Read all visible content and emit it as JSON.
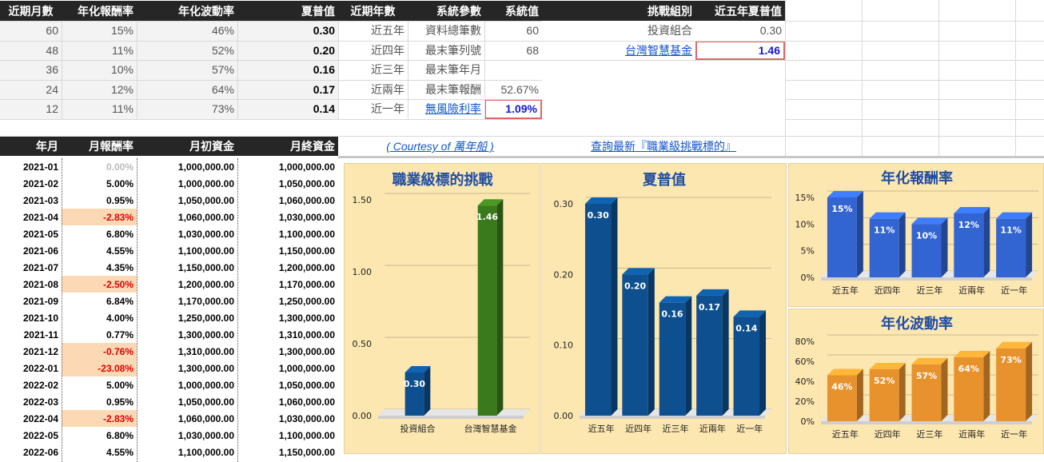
{
  "top_table": {
    "headers": [
      "近期月數",
      "年化報酬率",
      "年化波動率",
      "夏普值",
      "近期年數",
      "系統參數",
      "系統值"
    ],
    "rows": [
      [
        "60",
        "15%",
        "46%",
        "0.30",
        "近五年",
        "資料總筆數",
        "60"
      ],
      [
        "48",
        "11%",
        "52%",
        "0.20",
        "近四年",
        "最末筆列號",
        "68"
      ],
      [
        "36",
        "10%",
        "57%",
        "0.16",
        "近三年",
        "最末筆年月",
        ""
      ],
      [
        "24",
        "12%",
        "64%",
        "0.17",
        "近兩年",
        "最末筆報酬",
        "52.67%"
      ],
      [
        "12",
        "11%",
        "73%",
        "0.14",
        "近一年",
        "無風險利率",
        "1.09%"
      ]
    ]
  },
  "challenge_table": {
    "headers": [
      "挑戰組別",
      "近五年夏普值"
    ],
    "rows": [
      [
        "投資組合",
        "0.30"
      ],
      [
        "台灣智慧基金",
        "1.46"
      ]
    ]
  },
  "links": {
    "courtesy": "( Courtesy of 萬年船 )",
    "query": "查詢最新『職業級挑戰標的』"
  },
  "monthly_table": {
    "headers": [
      "年月",
      "月報酬率",
      "月初資金",
      "月終資金"
    ],
    "rows": [
      [
        "2021-01",
        "0.00%",
        "1,000,000.00",
        "1,000,000.00"
      ],
      [
        "2021-02",
        "5.00%",
        "1,000,000.00",
        "1,050,000.00"
      ],
      [
        "2021-03",
        "0.95%",
        "1,050,000.00",
        "1,060,000.00"
      ],
      [
        "2021-04",
        "-2.83%",
        "1,060,000.00",
        "1,030,000.00"
      ],
      [
        "2021-05",
        "6.80%",
        "1,030,000.00",
        "1,100,000.00"
      ],
      [
        "2021-06",
        "4.55%",
        "1,100,000.00",
        "1,150,000.00"
      ],
      [
        "2021-07",
        "4.35%",
        "1,150,000.00",
        "1,200,000.00"
      ],
      [
        "2021-08",
        "-2.50%",
        "1,200,000.00",
        "1,170,000.00"
      ],
      [
        "2021-09",
        "6.84%",
        "1,170,000.00",
        "1,250,000.00"
      ],
      [
        "2021-10",
        "4.00%",
        "1,250,000.00",
        "1,300,000.00"
      ],
      [
        "2021-11",
        "0.77%",
        "1,300,000.00",
        "1,310,000.00"
      ],
      [
        "2021-12",
        "-0.76%",
        "1,310,000.00",
        "1,300,000.00"
      ],
      [
        "2022-01",
        "-23.08%",
        "1,300,000.00",
        "1,000,000.00"
      ],
      [
        "2022-02",
        "5.00%",
        "1,000,000.00",
        "1,050,000.00"
      ],
      [
        "2022-03",
        "0.95%",
        "1,050,000.00",
        "1,060,000.00"
      ],
      [
        "2022-04",
        "-2.83%",
        "1,060,000.00",
        "1,030,000.00"
      ],
      [
        "2022-05",
        "6.80%",
        "1,030,000.00",
        "1,100,000.00"
      ],
      [
        "2022-06",
        "4.55%",
        "1,100,000.00",
        "1,150,000.00"
      ]
    ]
  },
  "colors": {
    "chart_bg": "#fde7b0",
    "navy": "#0d4f8f",
    "green": "#3a7a1c",
    "blue": "#3264d2",
    "orange": "#e8922e",
    "negative_bg": "#fcd9b4",
    "negative_text": "#e00000",
    "link": "#1155cc",
    "title": "#1f4ea3"
  },
  "chart_data": [
    {
      "type": "bar",
      "title": "職業級標的挑戰",
      "categories": [
        "投資組合",
        "台灣智慧基金"
      ],
      "values": [
        0.3,
        1.46
      ],
      "value_labels": [
        "0.30",
        "1.46"
      ],
      "colors": [
        "#0d4f8f",
        "#3a7a1c"
      ],
      "ylim": [
        0,
        1.5
      ],
      "ticks": [
        "0.00",
        "0.50",
        "1.00",
        "1.50"
      ],
      "tick_values": [
        0,
        0.5,
        1.0,
        1.5
      ]
    },
    {
      "type": "bar",
      "title": "夏普值",
      "categories": [
        "近五年",
        "近四年",
        "近三年",
        "近兩年",
        "近一年"
      ],
      "values": [
        0.3,
        0.2,
        0.16,
        0.17,
        0.14
      ],
      "value_labels": [
        "0.30",
        "0.20",
        "0.16",
        "0.17",
        "0.14"
      ],
      "colors": [
        "#0d4f8f",
        "#0d4f8f",
        "#0d4f8f",
        "#0d4f8f",
        "#0d4f8f"
      ],
      "ylim": [
        0,
        0.3
      ],
      "ticks": [
        "0.00",
        "0.10",
        "0.20",
        "0.30"
      ],
      "tick_values": [
        0,
        0.1,
        0.2,
        0.3
      ]
    },
    {
      "type": "bar",
      "title": "年化報酬率",
      "categories": [
        "近五年",
        "近四年",
        "近三年",
        "近兩年",
        "近一年"
      ],
      "values": [
        15,
        11,
        10,
        12,
        11
      ],
      "value_labels": [
        "15%",
        "11%",
        "10%",
        "12%",
        "11%"
      ],
      "colors": [
        "#3264d2",
        "#3264d2",
        "#3264d2",
        "#3264d2",
        "#3264d2"
      ],
      "ylim": [
        0,
        15
      ],
      "ticks": [
        "0%",
        "5%",
        "10%",
        "15%"
      ],
      "tick_values": [
        0,
        5,
        10,
        15
      ]
    },
    {
      "type": "bar",
      "title": "年化波動率",
      "categories": [
        "近五年",
        "近四年",
        "近三年",
        "近兩年",
        "近一年"
      ],
      "values": [
        46,
        52,
        57,
        64,
        73
      ],
      "value_labels": [
        "46%",
        "52%",
        "57%",
        "64%",
        "73%"
      ],
      "colors": [
        "#e8922e",
        "#e8922e",
        "#e8922e",
        "#e8922e",
        "#e8922e"
      ],
      "ylim": [
        0,
        80
      ],
      "ticks": [
        "0%",
        "20%",
        "40%",
        "60%",
        "80%"
      ],
      "tick_values": [
        0,
        20,
        40,
        60,
        80
      ]
    }
  ]
}
